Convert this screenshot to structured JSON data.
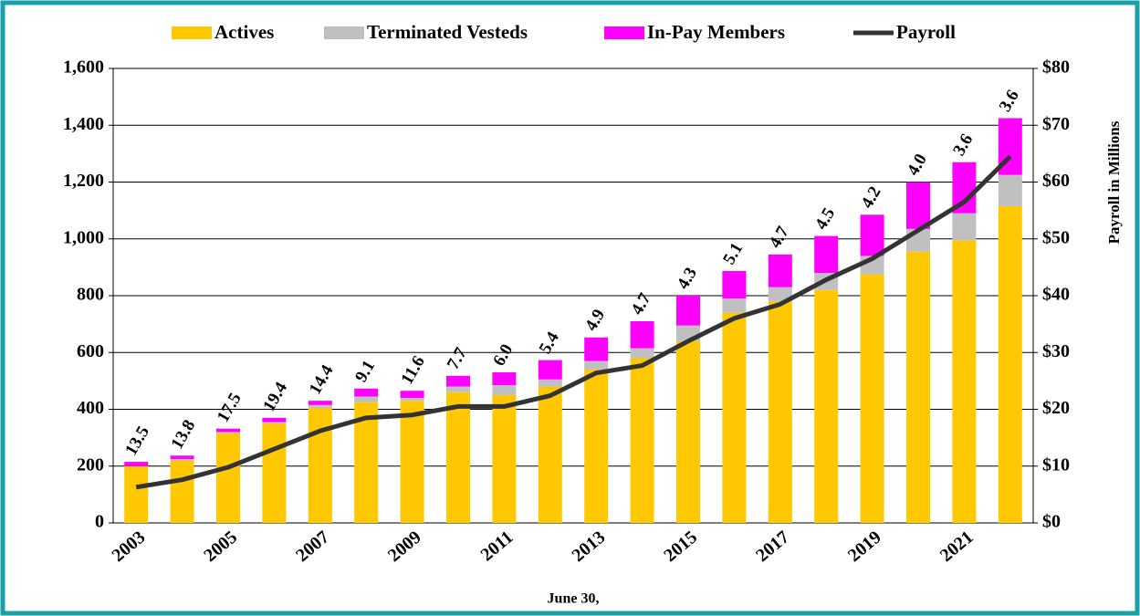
{
  "chart_data": {
    "type": "stacked-bar-line",
    "x_label": "June 30,",
    "y2_label": "Payroll in Millions",
    "categories": [
      "2003",
      null,
      "2005",
      null,
      "2007",
      null,
      "2009",
      null,
      "2011",
      null,
      "2013",
      null,
      "2015",
      null,
      "2017",
      null,
      "2019",
      null,
      "2021",
      null
    ],
    "series": [
      {
        "name": "Actives",
        "color": "#ffc800",
        "values": [
          200,
          220,
          315,
          350,
          405,
          425,
          430,
          460,
          450,
          480,
          540,
          580,
          640,
          740,
          780,
          820,
          875,
          955,
          995,
          1115
        ]
      },
      {
        "name": "Terminated Vesteds",
        "color": "#c0c0c0",
        "values": [
          0,
          5,
          5,
          5,
          10,
          20,
          10,
          20,
          35,
          25,
          30,
          35,
          55,
          50,
          50,
          60,
          65,
          80,
          95,
          110
        ]
      },
      {
        "name": "In-Pay Members",
        "color": "#ff00ff",
        "values": [
          15,
          12,
          12,
          15,
          15,
          28,
          25,
          38,
          45,
          68,
          83,
          95,
          105,
          97,
          115,
          130,
          145,
          165,
          180,
          200
        ]
      },
      {
        "name": "Payroll",
        "color": "#333333",
        "axis": "y2",
        "values": [
          6.3,
          7.6,
          9.8,
          13,
          16.2,
          18.5,
          19,
          20.5,
          20.5,
          22.4,
          26.4,
          27.7,
          32,
          36,
          38.5,
          42.8,
          46.5,
          51.5,
          56.5,
          64.5
        ]
      }
    ],
    "annotations": [
      "13.5",
      "13.8",
      "17.5",
      "19.4",
      "14.4",
      "9.1",
      "11.6",
      "7.7",
      "6.0",
      "5.4",
      "4.9",
      "4.7",
      "4.3",
      "5.1",
      "4.7",
      "4.5",
      "4.2",
      "4.0",
      "3.6",
      "3.6"
    ],
    "ylim": [
      0,
      1600
    ],
    "yticks": [
      0,
      200,
      400,
      600,
      800,
      {
        "value": 1000,
        "label": "1,000"
      },
      {
        "value": 1200,
        "label": "1,200"
      },
      {
        "value": 1400,
        "label": "1,400"
      },
      {
        "value": 1600,
        "label": "1,600"
      }
    ],
    "y2lim": [
      0,
      80
    ],
    "y2ticks": [
      {
        "value": 0,
        "label": "$0"
      },
      {
        "value": 10,
        "label": "$10"
      },
      {
        "value": 20,
        "label": "$20"
      },
      {
        "value": 30,
        "label": "$30"
      },
      {
        "value": 40,
        "label": "$40"
      },
      {
        "value": 50,
        "label": "$50"
      },
      {
        "value": 60,
        "label": "$60"
      },
      {
        "value": 70,
        "label": "$70"
      },
      {
        "value": 80,
        "label": "$80"
      }
    ],
    "grid": true,
    "legend": "top"
  }
}
